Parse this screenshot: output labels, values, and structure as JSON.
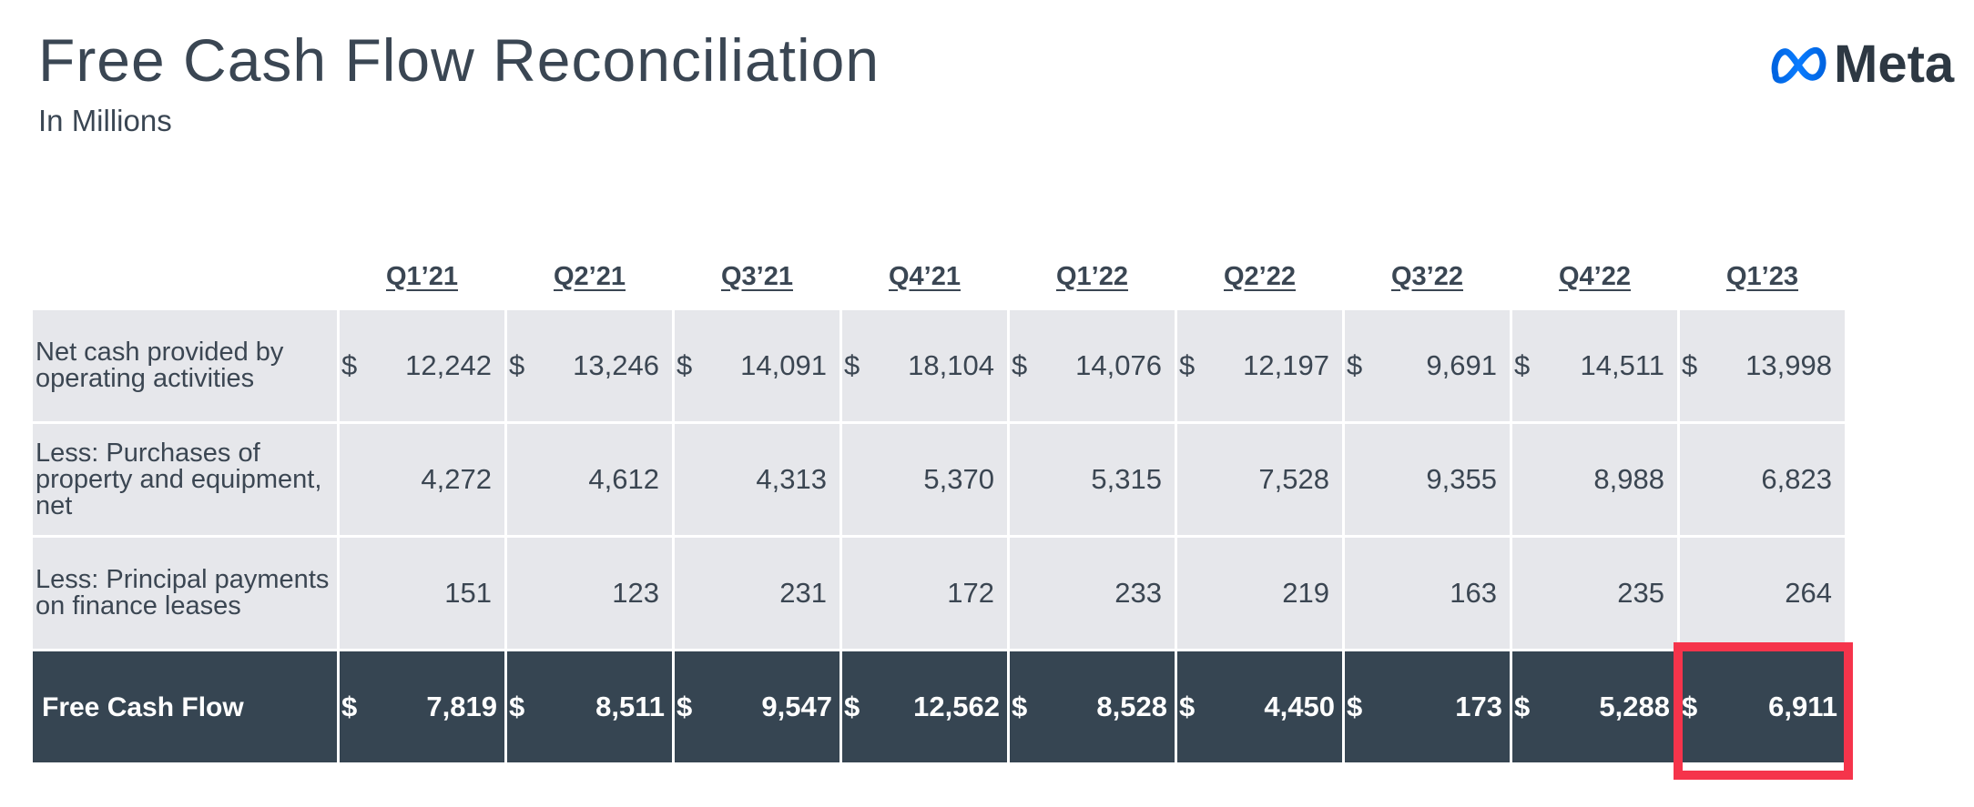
{
  "header": {
    "title": "Free Cash Flow Reconciliation",
    "subtitle": "In Millions",
    "logo_text": "Meta",
    "logo_icon": "meta-infinity-logo"
  },
  "table": {
    "columns": [
      "Q1’21",
      "Q2’21",
      "Q3’21",
      "Q4’21",
      "Q1’22",
      "Q2’22",
      "Q3’22",
      "Q4’22",
      "Q1’23"
    ],
    "currency": "$",
    "rows": [
      {
        "label": "Net cash provided by operating activities",
        "values": [
          "12,242",
          "13,246",
          "14,091",
          "18,104",
          "14,076",
          "12,197",
          "9,691",
          "14,511",
          "13,998"
        ]
      },
      {
        "label": "Less: Purchases of property and equipment, net",
        "values": [
          "4,272",
          "4,612",
          "4,313",
          "5,370",
          "5,315",
          "7,528",
          "9,355",
          "8,988",
          "6,823"
        ]
      },
      {
        "label": "Less: Principal payments on finance leases",
        "values": [
          "151",
          "123",
          "231",
          "172",
          "233",
          "219",
          "163",
          "235",
          "264"
        ]
      },
      {
        "label": "Free Cash Flow",
        "values": [
          "7,819",
          "8,511",
          "9,547",
          "12,562",
          "8,528",
          "4,450",
          "173",
          "5,288",
          "6,911"
        ]
      }
    ]
  },
  "colors": {
    "row_bg": "#e6e7eb",
    "total_bg": "#364552",
    "highlight": "#f5344b",
    "logo_blue": "#0a7cff"
  }
}
